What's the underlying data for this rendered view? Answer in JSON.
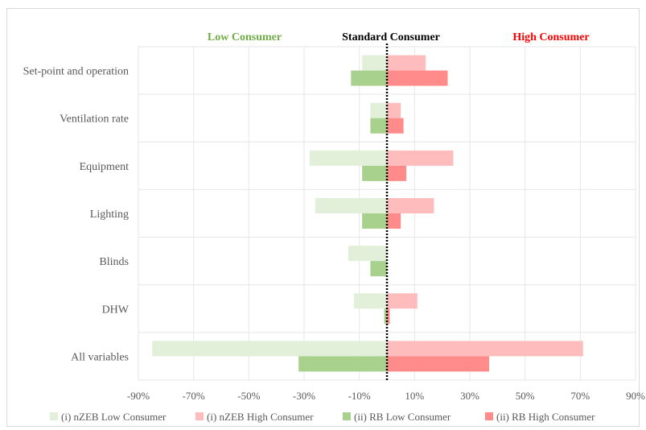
{
  "chart_data": {
    "type": "bar",
    "orientation": "horizontal",
    "header_labels": {
      "low": "Low Consumer",
      "standard": "Standard Consumer",
      "high": "High Consumer"
    },
    "header_colors": {
      "low": "#70ad47",
      "standard": "#000000",
      "high": "#ff0000"
    },
    "categories": [
      "Set-point and operation",
      "Ventilation rate",
      "Equipment",
      "Lighting",
      "Blinds",
      "DHW",
      "All variables"
    ],
    "series": [
      {
        "name": "(i) nZEB Low Consumer",
        "color": "#e2f0d9",
        "values": [
          -9,
          -6,
          -28,
          -26,
          -14,
          -12,
          -85
        ]
      },
      {
        "name": "(i) nZEB High Consumer",
        "color": "#ffbcbc",
        "values": [
          14,
          5,
          24,
          17,
          0,
          11,
          71
        ]
      },
      {
        "name": "(ii) RB Low Consumer",
        "color": "#a9d18e",
        "values": [
          -13,
          -6,
          -9,
          -9,
          -6,
          -1,
          -32
        ]
      },
      {
        "name": "(ii) RB High Consumer",
        "color": "#ff8b8b",
        "values": [
          22,
          6,
          7,
          5,
          0,
          1,
          37
        ]
      }
    ],
    "xlim": [
      -90,
      90
    ],
    "xticks": [
      "-90%",
      "-70%",
      "-50%",
      "-30%",
      "-10%",
      "10%",
      "30%",
      "50%",
      "70%",
      "90%"
    ],
    "xtick_values": [
      -90,
      -70,
      -50,
      -30,
      -10,
      10,
      30,
      50,
      70,
      90
    ],
    "zero_line": "dotted",
    "grid": true,
    "legend_position": "bottom"
  }
}
